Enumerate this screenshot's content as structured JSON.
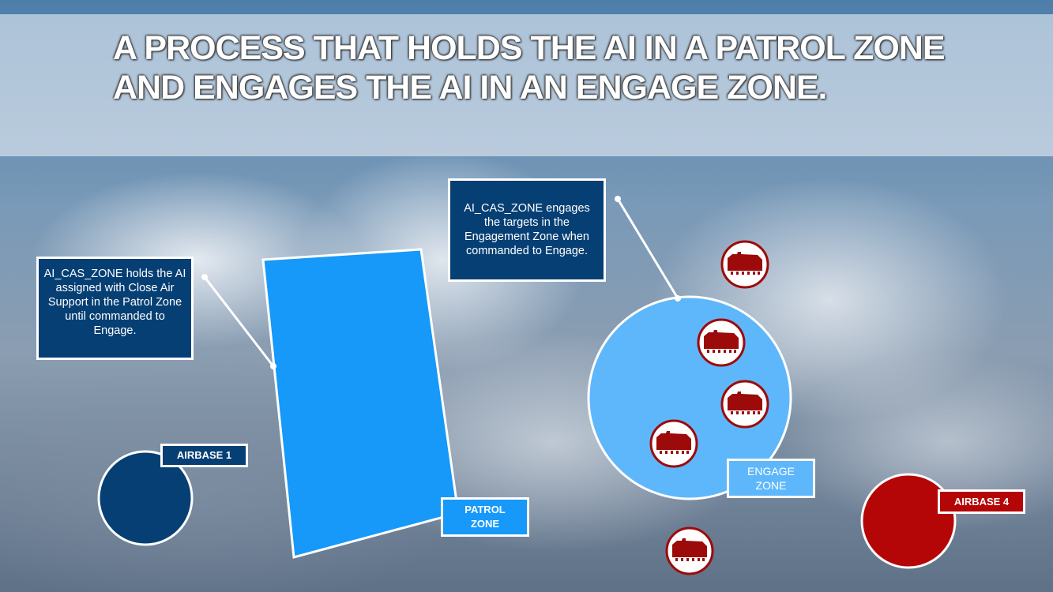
{
  "title": "A PROCESS THAT HOLDS THE AI IN A PATROL ZONE AND ENGAGES THE AI IN AN ENGAGE ZONE.",
  "callouts": {
    "patrol_note": "AI_CAS_ZONE holds the AI assigned with Close Air Support in the Patrol Zone until commanded to Engage.",
    "engage_note": "AI_CAS_ZONE engages the targets in the Engagement Zone when commanded to Engage."
  },
  "labels": {
    "airbase1": "AIRBASE 1",
    "airbase4": "AIRBASE 4",
    "patrol_zone": "PATROL ZONE",
    "engage_zone": "ENGAGE ZONE"
  },
  "colors": {
    "patrol_zone": "#1699f9",
    "engage_zone": "#5fb7fb",
    "airbase1": "#063f74",
    "airbase4": "#b40606",
    "target": "#9c0a0a"
  },
  "targets": {
    "icon": "tank-icon",
    "count": 5
  }
}
